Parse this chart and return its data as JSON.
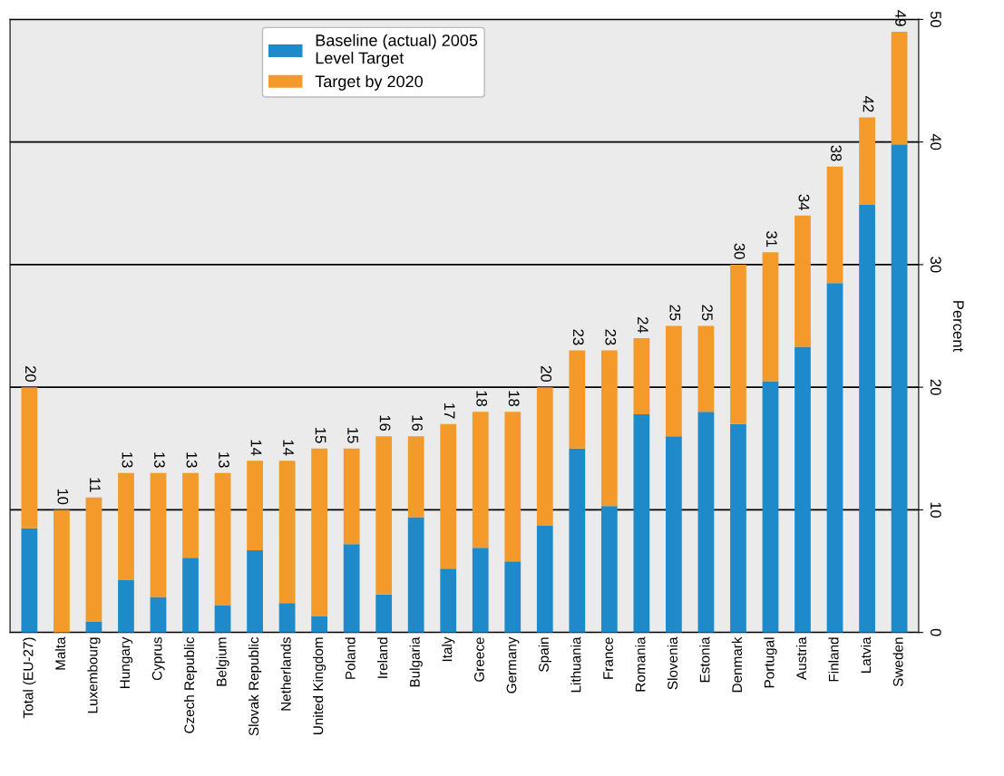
{
  "chart_data": {
    "type": "bar",
    "stacked": true,
    "ylabel": "Percent",
    "categories": [
      "Total (EU-27)",
      "Malta",
      "Luxembourg",
      "Hungary",
      "Cyprus",
      "Czech Republic",
      "Belgium",
      "Slovak Republic",
      "Netherlands",
      "United Kingdom",
      "Poland",
      "Ireland",
      "Bulgaria",
      "Italy",
      "Greece",
      "Germany",
      "Spain",
      "Lithuania",
      "France",
      "Romania",
      "Slovenia",
      "Estonia",
      "Denmark",
      "Portugal",
      "Austria",
      "Finland",
      "Latvia",
      "Sweden"
    ],
    "series": [
      {
        "name": "Baseline (actual) 2005\nLevel Target",
        "color": "#1f8ac9",
        "values": [
          8.5,
          0,
          0.9,
          4.3,
          2.9,
          6.1,
          2.2,
          6.7,
          2.4,
          1.3,
          7.2,
          3.1,
          9.4,
          5.2,
          6.9,
          5.8,
          8.7,
          15.0,
          10.3,
          17.8,
          16.0,
          18.0,
          17.0,
          20.5,
          23.3,
          28.5,
          34.9,
          39.8
        ]
      },
      {
        "name": "Target by 2020",
        "color": "#f39a2b",
        "values": [
          11.5,
          10,
          10.1,
          8.7,
          10.1,
          6.9,
          10.8,
          7.3,
          11.6,
          13.7,
          7.8,
          12.9,
          6.6,
          11.8,
          11.1,
          12.2,
          11.3,
          8.0,
          12.7,
          6.2,
          9.0,
          7.0,
          13.0,
          10.5,
          10.7,
          9.5,
          7.1,
          9.2
        ]
      }
    ],
    "totals": [
      "20",
      "10",
      "11",
      "13",
      "13",
      "13",
      "13",
      "14",
      "14",
      "15",
      "15",
      "16",
      "16",
      "17",
      "18",
      "18",
      "20",
      "23",
      "23",
      "24",
      "25",
      "25",
      "30",
      "31",
      "34",
      "38",
      "42",
      "49"
    ],
    "ylim": [
      0,
      50
    ],
    "yticks": [
      0,
      10,
      20,
      30,
      40,
      50
    ],
    "grid": "y",
    "legend": "top"
  }
}
